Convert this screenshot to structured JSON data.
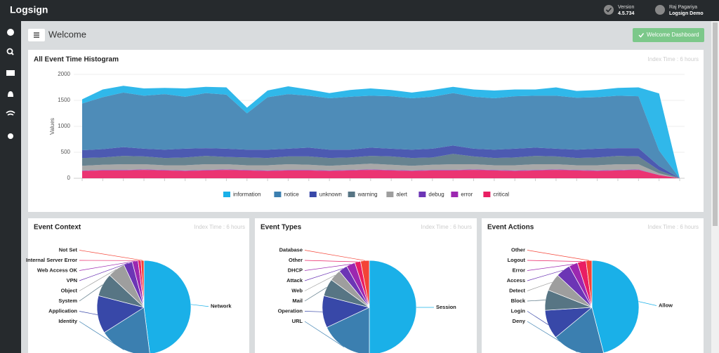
{
  "header": {
    "logo": "Logsign",
    "version_label": "Version",
    "version": "4.5.734",
    "user_name": "Raj Pagariya",
    "user_org": "Logsign Demo"
  },
  "page": {
    "title": "Welcome",
    "button": "Welcome Dashboard"
  },
  "histogram": {
    "type": "area",
    "title": "All Event Time Histogram",
    "note": "Index Time : 6 hours",
    "y_label": "Values",
    "stacked": true,
    "categories": [
      null,
      null,
      null,
      null,
      null,
      null,
      null,
      null,
      null,
      null,
      null,
      null,
      null,
      null,
      null,
      null,
      null,
      null,
      null,
      null,
      null,
      null,
      null,
      null,
      null,
      null,
      null,
      null,
      null,
      null
    ],
    "ylim": [
      0,
      2000
    ],
    "yticks": [
      0,
      500,
      1000,
      1500,
      2000
    ],
    "series": [
      {
        "name": "information",
        "color": "#1ab0e8",
        "values": [
          80,
          150,
          130,
          140,
          120,
          160,
          120,
          140,
          110,
          130,
          150,
          120,
          100,
          130,
          140,
          120,
          110,
          130,
          120,
          140,
          150,
          130,
          120,
          160,
          130,
          140,
          150,
          170,
          1100,
          0
        ]
      },
      {
        "name": "notice",
        "color": "#3b7fb0",
        "values": [
          900,
          1000,
          1050,
          1020,
          1070,
          1000,
          1060,
          1040,
          700,
          1010,
          1050,
          1000,
          990,
          1020,
          1000,
          1010,
          990,
          1000,
          1010,
          1000,
          990,
          1010,
          1000,
          1020,
          1000,
          990,
          1010,
          1000,
          300,
          0
        ]
      },
      {
        "name": "unknown",
        "color": "#3848a8",
        "values": [
          150,
          160,
          170,
          150,
          160,
          170,
          150,
          160,
          150,
          160,
          150,
          170,
          160,
          150,
          160,
          150,
          160,
          170,
          160,
          150,
          160,
          170,
          160,
          150,
          160,
          170,
          150,
          160,
          80,
          0
        ]
      },
      {
        "name": "warning",
        "color": "#577584",
        "values": [
          150,
          140,
          160,
          150,
          140,
          150,
          160,
          140,
          150,
          140,
          150,
          160,
          150,
          140,
          150,
          160,
          150,
          140,
          200,
          150,
          140,
          150,
          160,
          150,
          140,
          150,
          160,
          150,
          60,
          0
        ]
      },
      {
        "name": "alert",
        "color": "#9e9e9e",
        "values": [
          90,
          100,
          110,
          100,
          90,
          100,
          110,
          100,
          90,
          100,
          110,
          100,
          90,
          100,
          110,
          100,
          90,
          100,
          110,
          100,
          90,
          100,
          110,
          100,
          90,
          100,
          110,
          100,
          30,
          0
        ]
      },
      {
        "name": "debug",
        "color": "#6c35b5",
        "values": [
          5,
          5,
          5,
          5,
          5,
          5,
          5,
          5,
          5,
          5,
          5,
          5,
          5,
          5,
          5,
          5,
          5,
          5,
          5,
          5,
          5,
          5,
          5,
          5,
          5,
          5,
          5,
          5,
          2,
          0
        ]
      },
      {
        "name": "error",
        "color": "#9c27b0",
        "values": [
          5,
          5,
          5,
          5,
          5,
          5,
          5,
          5,
          5,
          5,
          5,
          5,
          5,
          5,
          5,
          5,
          5,
          5,
          5,
          5,
          5,
          5,
          5,
          5,
          5,
          5,
          5,
          5,
          2,
          0
        ]
      },
      {
        "name": "critical",
        "color": "#e91e63",
        "values": [
          140,
          150,
          150,
          160,
          150,
          140,
          150,
          160,
          150,
          140,
          150,
          150,
          140,
          150,
          160,
          150,
          140,
          150,
          150,
          160,
          150,
          140,
          150,
          160,
          150,
          140,
          150,
          160,
          60,
          0
        ]
      }
    ]
  },
  "pies": [
    {
      "type": "pie",
      "title": "Event Context",
      "note": "Index Time : 6 hours",
      "labels": [
        "Network",
        "Identity",
        "Application",
        "System",
        "Object",
        "VPN",
        "Web Access OK",
        "Internal Server Error",
        "Not Set"
      ],
      "values": [
        48,
        18,
        13,
        8,
        6,
        3,
        2,
        1,
        1
      ],
      "colors": [
        "#1ab0e8",
        "#3b7fb0",
        "#3848a8",
        "#577584",
        "#9e9e9e",
        "#6c35b5",
        "#9c27b0",
        "#e91e63",
        "#f44336"
      ]
    },
    {
      "type": "pie",
      "title": "Event Types",
      "note": "Index Time : 6 hours",
      "labels": [
        "Session",
        "URL",
        "Operation",
        "Mail",
        "Web",
        "Attack",
        "DHCP",
        "Other",
        "Database"
      ],
      "values": [
        50,
        18,
        11,
        6,
        4,
        3,
        3,
        2,
        3
      ],
      "colors": [
        "#1ab0e8",
        "#3b7fb0",
        "#3848a8",
        "#577584",
        "#9e9e9e",
        "#6c35b5",
        "#9c27b0",
        "#e91e63",
        "#f44336"
      ]
    },
    {
      "type": "pie",
      "title": "Event Actions",
      "note": "Index Time : 6 hours",
      "labels": [
        "Allow",
        "Deny",
        "Login",
        "Block",
        "Detect",
        "Access",
        "Error",
        "Logout",
        "Other"
      ],
      "values": [
        46,
        18,
        10,
        7,
        6,
        5,
        3,
        3,
        2
      ],
      "colors": [
        "#1ab0e8",
        "#3b7fb0",
        "#3848a8",
        "#577584",
        "#9e9e9e",
        "#6c35b5",
        "#9c27b0",
        "#e91e63",
        "#f44336"
      ]
    }
  ]
}
